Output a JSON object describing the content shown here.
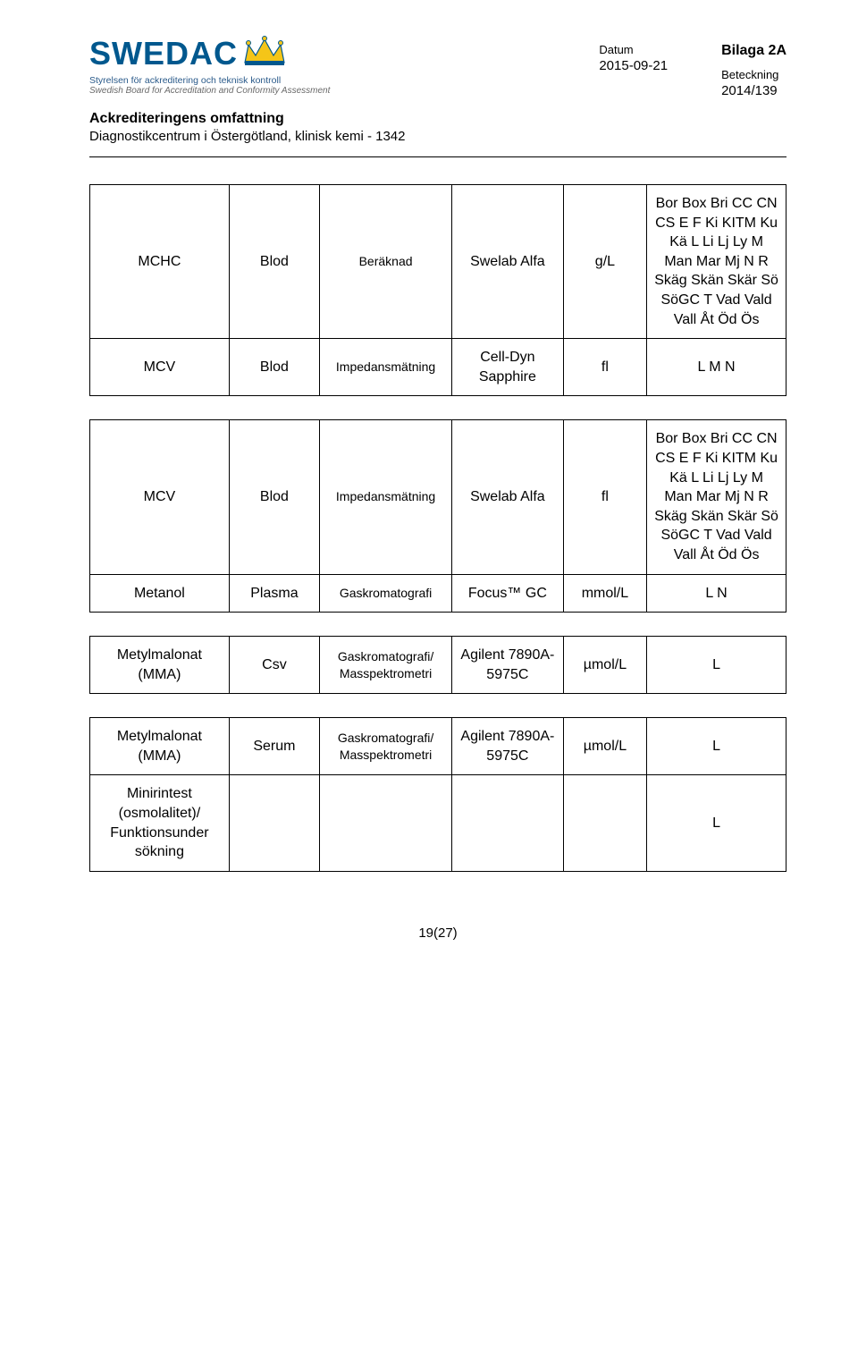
{
  "logo": {
    "main": "SWEDAC",
    "sub1": "Styrelsen för ackreditering och teknisk kontroll",
    "sub2": "Swedish Board for Accreditation and Conformity Assessment",
    "crown_colors": {
      "blue": "#00588e",
      "yellow": "#f5c518"
    }
  },
  "header": {
    "bilaga": "Bilaga 2A",
    "datum_label": "Datum",
    "datum_value": "2015-09-21",
    "beteckning_label": "Beteckning",
    "beteckning_value": "2014/139"
  },
  "titles": {
    "t1": "Ackrediteringens omfattning",
    "t2": "Diagnostikcentrum i Östergötland, klinisk kemi - 1342"
  },
  "colors": {
    "text": "#000000",
    "logo_blue": "#00588e",
    "logo_gray": "#6a6a6a",
    "border": "#000000",
    "background": "#ffffff"
  },
  "col_widths_pct": [
    20,
    13,
    19,
    16,
    12,
    20
  ],
  "tables": [
    {
      "rows": [
        [
          "MCHC",
          "Blod",
          "Beräknad",
          "Swelab Alfa",
          "g/L",
          "Bor Box Bri CC CN CS E F Ki KITM Ku Kä L Li Lj Ly M Man Mar Mj N R Skäg Skän Skär Sö SöGC T Vad Vald Vall Åt Öd Ös"
        ],
        [
          "MCV",
          "Blod",
          "Impedansmätning",
          "Cell-Dyn Sapphire",
          "fl",
          "L M N"
        ]
      ]
    },
    {
      "rows": [
        [
          "MCV",
          "Blod",
          "Impedansmätning",
          "Swelab Alfa",
          "fl",
          "Bor Box Bri CC CN CS E F Ki KITM Ku Kä L Li Lj Ly M Man Mar Mj N R Skäg Skän Skär Sö SöGC T Vad Vald Vall Åt Öd Ös"
        ],
        [
          "Metanol",
          "Plasma",
          "Gaskromatografi",
          "Focus™ GC",
          "mmol/L",
          "L N"
        ]
      ]
    },
    {
      "rows": [
        [
          "Metylmalonat (MMA)",
          "Csv",
          "Gaskromatografi/ Masspektrometri",
          "Agilent 7890A-5975C",
          "µmol/L",
          "L"
        ]
      ]
    },
    {
      "rows": [
        [
          "Metylmalonat (MMA)",
          "Serum",
          "Gaskromatografi/ Masspektrometri",
          "Agilent 7890A-5975C",
          "µmol/L",
          "L"
        ],
        [
          "Minirintest (osmolalitet)/ Funktionsunder sökning",
          "",
          "",
          "",
          "",
          "L"
        ]
      ]
    }
  ],
  "small_font_cols": [
    2
  ],
  "footer": "19(27)"
}
